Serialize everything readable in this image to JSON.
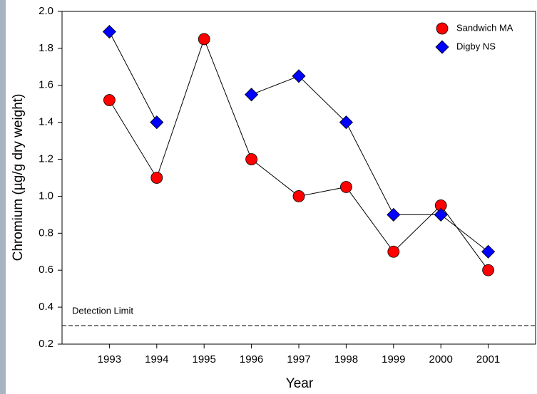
{
  "chart_data": {
    "type": "line",
    "x": [
      1993,
      1994,
      1995,
      1996,
      1997,
      1998,
      1999,
      2000,
      2001
    ],
    "series": [
      {
        "name": "Sandwich MA",
        "color": "#ff0000",
        "marker": "circle",
        "values": [
          1.52,
          1.1,
          1.85,
          1.2,
          1.0,
          1.05,
          0.7,
          0.95,
          0.6
        ]
      },
      {
        "name": "Digby NS",
        "color": "#0000ff",
        "marker": "diamond",
        "values": [
          1.89,
          1.4,
          null,
          1.55,
          1.65,
          1.4,
          0.9,
          0.9,
          0.7
        ]
      }
    ],
    "xlabel": "Year",
    "ylabel": "Chromium (µg/g dry weight)",
    "xlim": [
      1992,
      2002
    ],
    "xticks": [
      1993,
      1994,
      1995,
      1996,
      1997,
      1998,
      1999,
      2000,
      2001
    ],
    "ylim": [
      0.2,
      2.0
    ],
    "yticks": [
      0.2,
      0.4,
      0.6,
      0.8,
      {
        "value": 1.0,
        "label": "1.0"
      },
      1.2,
      1.4,
      1.6,
      1.8,
      {
        "value": 2.0,
        "label": "2.0"
      }
    ],
    "reference_line": {
      "value": 0.3,
      "label": "Detection Limit"
    },
    "legend": "upper right"
  }
}
